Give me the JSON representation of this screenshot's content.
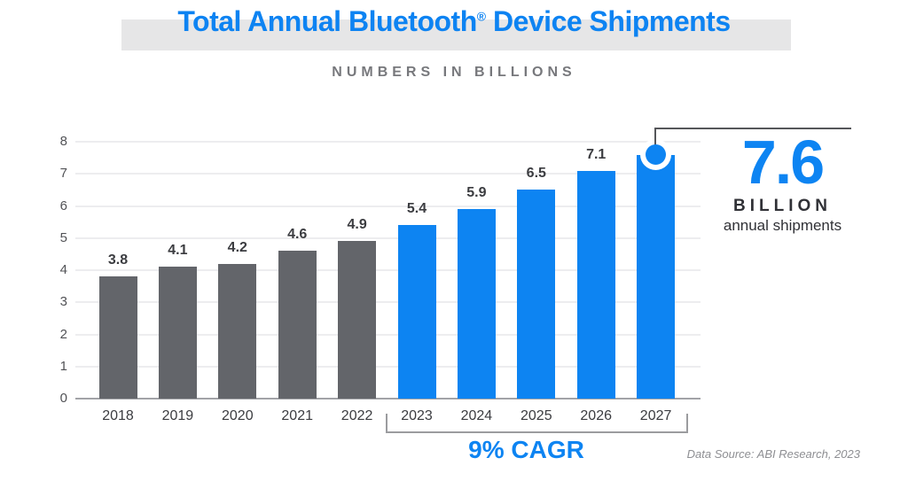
{
  "title": {
    "pre": "Total Annual Bluetooth",
    "reg": "®",
    "post": " Device Shipments",
    "full": "Total Annual Bluetooth® Device Shipments"
  },
  "subtitle": "NUMBERS IN BILLIONS",
  "callout": {
    "value": "7.6",
    "unit": "BILLION",
    "caption": "annual shipments"
  },
  "cagr_label": "9% CAGR",
  "source": "Data Source: ABI Research, 2023",
  "colors": {
    "brand_blue": "#0d84f2",
    "historical_gray": "#63656a",
    "title_highlight": "#e6e6e7",
    "grid": "#ededef",
    "axis": "#a2a3a7",
    "text_dark": "#3b3c40",
    "connector": "#55565a"
  },
  "chart_data": {
    "type": "bar",
    "title": "Total Annual Bluetooth® Device Shipments",
    "subtitle": "NUMBERS IN BILLIONS",
    "xlabel": "",
    "ylabel": "",
    "units": "billions of device shipments",
    "categories": [
      "2018",
      "2019",
      "2020",
      "2021",
      "2022",
      "2023",
      "2024",
      "2025",
      "2026",
      "2027"
    ],
    "values": [
      3.8,
      4.1,
      4.2,
      4.6,
      4.9,
      5.4,
      5.9,
      6.5,
      7.1,
      7.6
    ],
    "ylim": [
      0,
      8
    ],
    "yticks": [
      0,
      1,
      2,
      3,
      4,
      5,
      6,
      7,
      8
    ],
    "grid": true,
    "legend": "none",
    "segments": [
      {
        "name": "historical",
        "from": "2018",
        "to": "2022",
        "color": "#63656a"
      },
      {
        "name": "forecast",
        "from": "2023",
        "to": "2027",
        "color": "#0d84f2"
      }
    ],
    "forecast_start_index": 5,
    "highlight_index": 9,
    "annotations": {
      "cagr": "9% CAGR",
      "cagr_span": [
        "2023",
        "2027"
      ],
      "callout": "7.6 BILLION annual shipments",
      "source": "Data Source: ABI Research, 2023"
    }
  }
}
